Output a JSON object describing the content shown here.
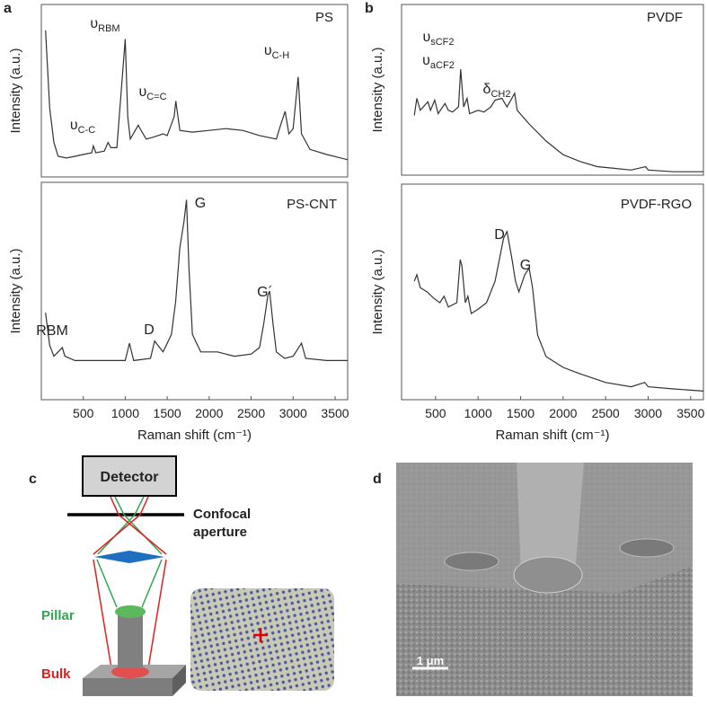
{
  "panel_labels": [
    "a",
    "b",
    "c",
    "d"
  ],
  "chart_data": [
    {
      "type": "line",
      "title": "PS",
      "y_label": "Intensity (a.u.)",
      "color": "#333333",
      "xlim": [
        0,
        3650
      ],
      "ylim": [
        0,
        100
      ],
      "x": [
        50,
        100,
        150,
        200,
        300,
        400,
        500,
        600,
        620,
        650,
        750,
        795,
        830,
        900,
        1000,
        1030,
        1060,
        1155,
        1200,
        1250,
        1330,
        1450,
        1500,
        1583,
        1602,
        1650,
        1800,
        2000,
        2200,
        2400,
        2600,
        2800,
        2850,
        2905,
        2950,
        3000,
        3060,
        3100,
        3200,
        3400,
        3650
      ],
      "values": [
        85,
        40,
        20,
        12,
        11,
        12,
        13,
        14,
        18,
        14,
        15,
        20,
        17,
        17,
        80,
        35,
        22,
        30,
        26,
        22,
        23,
        25,
        24,
        35,
        44,
        27,
        26,
        27,
        28,
        27,
        24,
        22,
        30,
        38,
        25,
        28,
        58,
        25,
        16,
        13,
        10
      ],
      "annotations": [
        {
          "text": "υ",
          "sub": "C-C"
        },
        {
          "text": "υ",
          "sub": "RBM"
        },
        {
          "text": "υ",
          "sub": "C=C"
        },
        {
          "text": "υ",
          "sub": "C-H"
        }
      ]
    },
    {
      "type": "line",
      "title": "PS-CNT",
      "y_label": "Intensity (a.u.)",
      "x_label": "Raman shift (cm⁻¹)",
      "color": "#333333",
      "xlim": [
        0,
        3650
      ],
      "ylim": [
        0,
        100
      ],
      "xticks": [
        500,
        1000,
        1500,
        2000,
        2500,
        3000,
        3500
      ],
      "x": [
        50,
        100,
        150,
        200,
        250,
        280,
        400,
        600,
        800,
        1000,
        1050,
        1100,
        1300,
        1350,
        1450,
        1550,
        1600,
        1650,
        1700,
        1730,
        1760,
        1800,
        1900,
        2100,
        2300,
        2500,
        2600,
        2650,
        2700,
        2720,
        2760,
        2800,
        2900,
        3000,
        3100,
        3150,
        3400,
        3650
      ],
      "values": [
        40,
        25,
        20,
        22,
        24,
        20,
        18,
        18,
        18,
        18,
        26,
        18,
        19,
        27,
        22,
        30,
        45,
        70,
        82,
        92,
        60,
        30,
        22,
        22,
        20,
        21,
        24,
        35,
        48,
        50,
        35,
        22,
        19,
        20,
        26,
        19,
        18,
        18
      ],
      "annotations": [
        {
          "text": "G"
        },
        {
          "text": "D"
        },
        {
          "text": "G´"
        },
        {
          "text": "RBM"
        }
      ]
    },
    {
      "type": "line",
      "title": "PVDF",
      "y_label": "Intensity (a.u.)",
      "color": "#333333",
      "xlim": [
        100,
        3650
      ],
      "ylim": [
        0,
        100
      ],
      "x": [
        250,
        280,
        320,
        410,
        440,
        490,
        530,
        610,
        650,
        700,
        770,
        795,
        830,
        870,
        900,
        1000,
        1070,
        1150,
        1200,
        1280,
        1340,
        1430,
        1460,
        1600,
        1800,
        2000,
        2200,
        2400,
        2600,
        2800,
        2970,
        3000,
        3300,
        3650
      ],
      "values": [
        35,
        45,
        38,
        43,
        38,
        44,
        36,
        42,
        38,
        37,
        40,
        62,
        40,
        45,
        36,
        38,
        37,
        40,
        44,
        45,
        40,
        48,
        38,
        30,
        20,
        12,
        8,
        5,
        4,
        3,
        5,
        3,
        2,
        2
      ],
      "annotations": [
        {
          "text": "υ",
          "sub": "sCF2"
        },
        {
          "text": "υ",
          "sub": "aCF2"
        },
        {
          "text": "δ",
          "sub": "CH2"
        }
      ]
    },
    {
      "type": "line",
      "title": "PVDF-RGO",
      "y_label": "Intensity (a.u.)",
      "x_label": "Raman shift (cm⁻¹)",
      "color": "#333333",
      "xlim": [
        100,
        3650
      ],
      "ylim": [
        0,
        100
      ],
      "xticks": [
        500,
        1000,
        1500,
        2000,
        2500,
        3000,
        3500
      ],
      "x": [
        250,
        280,
        320,
        400,
        480,
        550,
        600,
        650,
        750,
        790,
        810,
        850,
        880,
        920,
        1000,
        1100,
        1200,
        1300,
        1340,
        1400,
        1440,
        1480,
        1550,
        1600,
        1640,
        1700,
        1800,
        2000,
        2200,
        2500,
        2800,
        2960,
        3000,
        3300,
        3650
      ],
      "values": [
        55,
        58,
        52,
        50,
        47,
        45,
        48,
        43,
        45,
        65,
        62,
        45,
        48,
        40,
        42,
        45,
        55,
        75,
        78,
        65,
        55,
        50,
        58,
        61,
        52,
        30,
        20,
        15,
        12,
        8,
        6,
        8,
        6,
        5,
        4
      ],
      "annotations": [
        {
          "text": "D"
        },
        {
          "text": "G"
        }
      ]
    }
  ],
  "diagram": {
    "detector": "Detector",
    "aperture": [
      "Confocal",
      "aperture"
    ],
    "pillar": "Pillar",
    "bulk": "Bulk"
  },
  "sem": {
    "scale_bar": "1 μm"
  }
}
